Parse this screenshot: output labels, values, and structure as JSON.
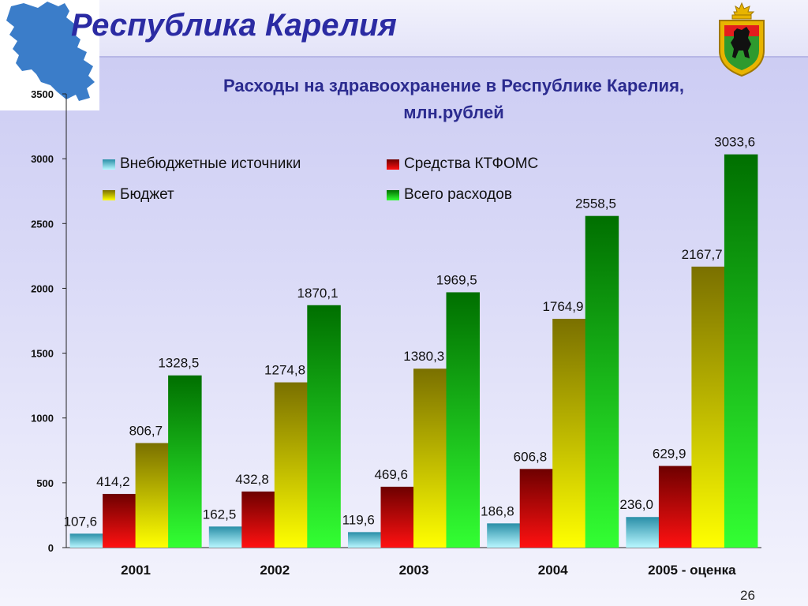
{
  "slide": {
    "title": "Республика Карелия",
    "page_number": "26"
  },
  "chart_data": {
    "type": "bar",
    "title_lines": [
      "Расходы на здравоохранение в Республике Карелия,",
      "млн.рублей"
    ],
    "categories": [
      "2001",
      "2002",
      "2003",
      "2004",
      "2005 - оценка"
    ],
    "series": [
      {
        "name": "Внебюджетные источники",
        "values": [
          107.6,
          162.5,
          119.6,
          186.8,
          236.0
        ],
        "labels": [
          "107,6",
          "162,5",
          "119,6",
          "186,8",
          "236,0"
        ],
        "color_top": "#2a8fa8",
        "color_bottom": "#b8f7ff"
      },
      {
        "name": "Средства КТФОМС",
        "values": [
          414.2,
          432.8,
          469.6,
          606.8,
          629.9
        ],
        "labels": [
          "414,2",
          "432,8",
          "469,6",
          "606,8",
          "629,9"
        ],
        "color_top": "#6e0000",
        "color_bottom": "#ff1111"
      },
      {
        "name": "Бюджет",
        "values": [
          806.7,
          1274.8,
          1380.3,
          1764.9,
          2167.7
        ],
        "labels": [
          "806,7",
          "1274,8",
          "1380,3",
          "1764,9",
          "2167,7"
        ],
        "color_top": "#7a7000",
        "color_bottom": "#ffff00"
      },
      {
        "name": "Всего расходов",
        "values": [
          1328.5,
          1870.1,
          1969.5,
          2558.5,
          3033.6
        ],
        "labels": [
          "1328,5",
          "1870,1",
          "1969,5",
          "2558,5",
          "3033,6"
        ],
        "color_top": "#006f00",
        "color_bottom": "#33ff33"
      }
    ],
    "ylim": [
      0,
      3500
    ],
    "yticks": [
      "0",
      "500",
      "1000",
      "1500",
      "2000",
      "2500",
      "3000",
      "3500"
    ],
    "grid": false,
    "legend_position": "top-left"
  },
  "colors": {
    "title": "#2b2ba3",
    "chart_title": "#2b2b8f",
    "map": "#3b7dc9"
  },
  "icons": {
    "map": "karelia-map-icon",
    "emblem": "karelia-coat-of-arms-icon"
  }
}
